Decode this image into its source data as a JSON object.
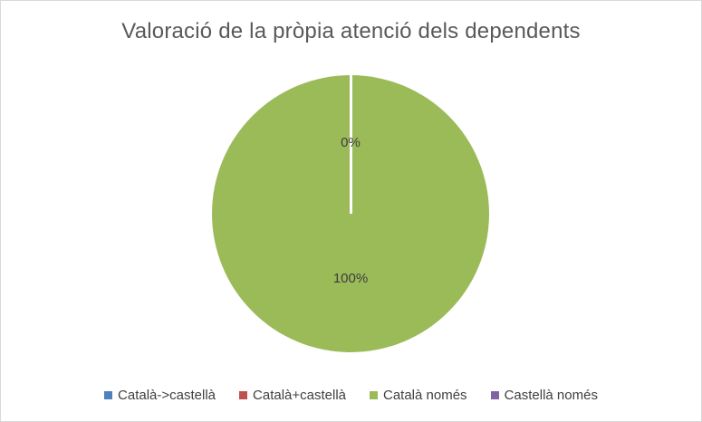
{
  "chart_data": {
    "type": "pie",
    "title": "Valoració de la pròpia atenció dels dependents",
    "categories": [
      "Català->castellà",
      "Català+castellà",
      "Català només",
      "Castellà només"
    ],
    "values": [
      0,
      0,
      100,
      0
    ],
    "unit": "percent",
    "colors": [
      "#4F81BD",
      "#C0504D",
      "#9BBB59",
      "#8064A2"
    ],
    "data_labels": [
      "0%",
      "0%",
      "100%",
      "0%"
    ],
    "visible_data_labels": [
      {
        "text": "0%",
        "slice": "zero-slices-at-top",
        "position": "upper-center"
      },
      {
        "text": "100%",
        "slice": "Català només",
        "position": "lower-center"
      }
    ],
    "legend_position": "bottom",
    "background": "#ffffff",
    "frame_border_color": "#d9d9d9",
    "title_color": "#595959",
    "label_color": "#3d3d3d"
  }
}
